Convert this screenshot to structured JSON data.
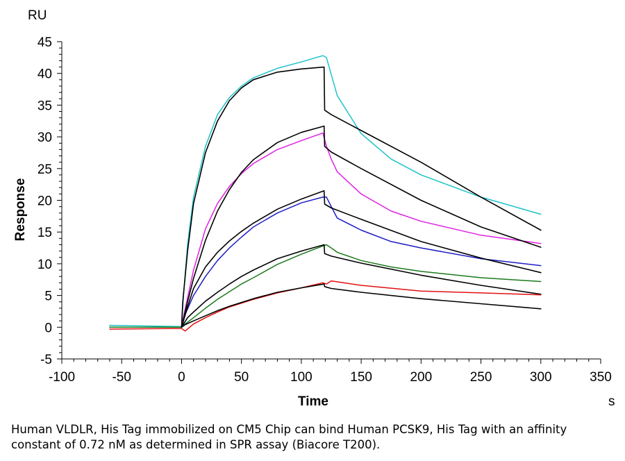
{
  "chart_data": {
    "type": "line",
    "ylabel": "Response",
    "y_unit": "RU",
    "xlabel": "Time",
    "x_unit": "s",
    "xlim": [
      -100,
      350
    ],
    "ylim": [
      -5,
      45
    ],
    "x_ticks": [
      -100,
      -50,
      0,
      50,
      100,
      150,
      200,
      250,
      300,
      350
    ],
    "y_ticks": [
      -5,
      0,
      5,
      10,
      15,
      20,
      25,
      30,
      35,
      40,
      45
    ],
    "grid": false,
    "legend": "none",
    "series": [
      {
        "color": "#1fc2c9",
        "kind": "measured",
        "x": [
          -60,
          -30,
          0,
          2,
          5,
          10,
          20,
          30,
          40,
          50,
          60,
          80,
          100,
          118,
          121,
          130,
          150,
          175,
          200,
          250,
          300
        ],
        "y": [
          0.3,
          0.2,
          0.1,
          6,
          13,
          20.5,
          28.5,
          33.5,
          36.2,
          38,
          39.3,
          40.8,
          41.8,
          42.8,
          42.5,
          36.5,
          30.5,
          26.5,
          24,
          20.5,
          17.8
        ]
      },
      {
        "color": "#000000",
        "kind": "fit",
        "x": [
          0,
          1,
          5,
          10,
          20,
          30,
          40,
          50,
          60,
          80,
          100,
          119,
          119.5,
          125,
          150,
          200,
          250,
          300
        ],
        "y": [
          0,
          4,
          12,
          19.5,
          27.5,
          32.5,
          35.7,
          37.7,
          39,
          40.2,
          40.7,
          41,
          34.2,
          33.5,
          31,
          26,
          20.5,
          15.3
        ]
      },
      {
        "color": "#e020e0",
        "kind": "measured",
        "x": [
          -60,
          0,
          2,
          10,
          20,
          30,
          40,
          50,
          60,
          80,
          100,
          118,
          121,
          125,
          130,
          150,
          175,
          200,
          250,
          300
        ],
        "y": [
          0,
          0,
          2,
          9,
          15.5,
          19.5,
          22.2,
          24.2,
          25.8,
          28,
          29.4,
          30.6,
          28.5,
          26.5,
          24.5,
          21,
          18.3,
          16.7,
          14.5,
          13.2
        ]
      },
      {
        "color": "#000000",
        "kind": "fit",
        "x": [
          0,
          5,
          10,
          20,
          30,
          40,
          50,
          60,
          80,
          100,
          119,
          119.5,
          125,
          150,
          200,
          250,
          300
        ],
        "y": [
          0,
          4,
          7.7,
          13.7,
          18.3,
          21.7,
          24.4,
          26.4,
          29.1,
          30.7,
          31.7,
          28.5,
          27.6,
          25,
          20,
          15.8,
          12.6
        ]
      },
      {
        "color": "#1c1cc4",
        "kind": "measured",
        "x": [
          -60,
          0,
          3,
          10,
          20,
          30,
          40,
          50,
          60,
          80,
          100,
          118,
          121,
          125,
          130,
          150,
          175,
          200,
          250,
          300
        ],
        "y": [
          0,
          0,
          2,
          5,
          8,
          10.5,
          12.5,
          14.2,
          15.8,
          18,
          19.6,
          20.5,
          20.5,
          19,
          17.2,
          15.3,
          13.5,
          12.5,
          10.8,
          9.7
        ]
      },
      {
        "color": "#000000",
        "kind": "fit",
        "x": [
          0,
          5,
          10,
          20,
          30,
          40,
          50,
          60,
          80,
          100,
          119,
          119.5,
          125,
          150,
          200,
          250,
          300
        ],
        "y": [
          0,
          3.2,
          6.1,
          9.5,
          11.8,
          13.6,
          15.1,
          16.4,
          18.6,
          20.2,
          21.5,
          19.4,
          18.8,
          17,
          13.5,
          10.9,
          8.6
        ]
      },
      {
        "color": "#1a7a1a",
        "kind": "measured",
        "x": [
          -60,
          0,
          3,
          10,
          20,
          30,
          40,
          50,
          60,
          80,
          100,
          118,
          121,
          125,
          130,
          150,
          175,
          200,
          250,
          300
        ],
        "y": [
          0,
          0,
          0.5,
          1.5,
          3,
          4.4,
          5.6,
          6.8,
          7.8,
          9.9,
          11.5,
          12.8,
          13,
          12.5,
          11.8,
          10.5,
          9.5,
          8.8,
          7.8,
          7.2
        ]
      },
      {
        "color": "#000000",
        "kind": "fit",
        "x": [
          0,
          5,
          10,
          20,
          30,
          40,
          50,
          60,
          80,
          100,
          119,
          119.5,
          125,
          150,
          200,
          250,
          300
        ],
        "y": [
          0,
          1.5,
          2.4,
          4.1,
          5.5,
          6.8,
          8,
          9,
          10.8,
          12,
          13,
          11.6,
          11.2,
          10.1,
          8.2,
          6.6,
          5.2
        ]
      },
      {
        "color": "#e01010",
        "kind": "measured",
        "x": [
          -60,
          0,
          3,
          10,
          20,
          30,
          40,
          50,
          60,
          80,
          100,
          118,
          121,
          125,
          150,
          200,
          250,
          300
        ],
        "y": [
          -0.3,
          -0.2,
          -0.6,
          0.5,
          1.5,
          2.4,
          3.2,
          3.8,
          4.4,
          5.4,
          6.2,
          7,
          6.8,
          7.3,
          6.6,
          5.7,
          5.4,
          5.1
        ]
      },
      {
        "color": "#000000",
        "kind": "fit",
        "x": [
          0,
          3,
          10,
          20,
          30,
          40,
          50,
          60,
          80,
          100,
          119,
          119.5,
          125,
          150,
          200,
          250,
          300
        ],
        "y": [
          0,
          0.4,
          1,
          1.8,
          2.6,
          3.3,
          3.9,
          4.5,
          5.5,
          6.2,
          6.8,
          6.4,
          6.1,
          5.5,
          4.5,
          3.7,
          2.9
        ]
      }
    ]
  },
  "caption": "Human VLDLR, His Tag immobilized on CM5 Chip can bind Human PCSK9, His Tag with an affinity constant of 0.72 nM as determined in SPR assay (Biacore T200)."
}
